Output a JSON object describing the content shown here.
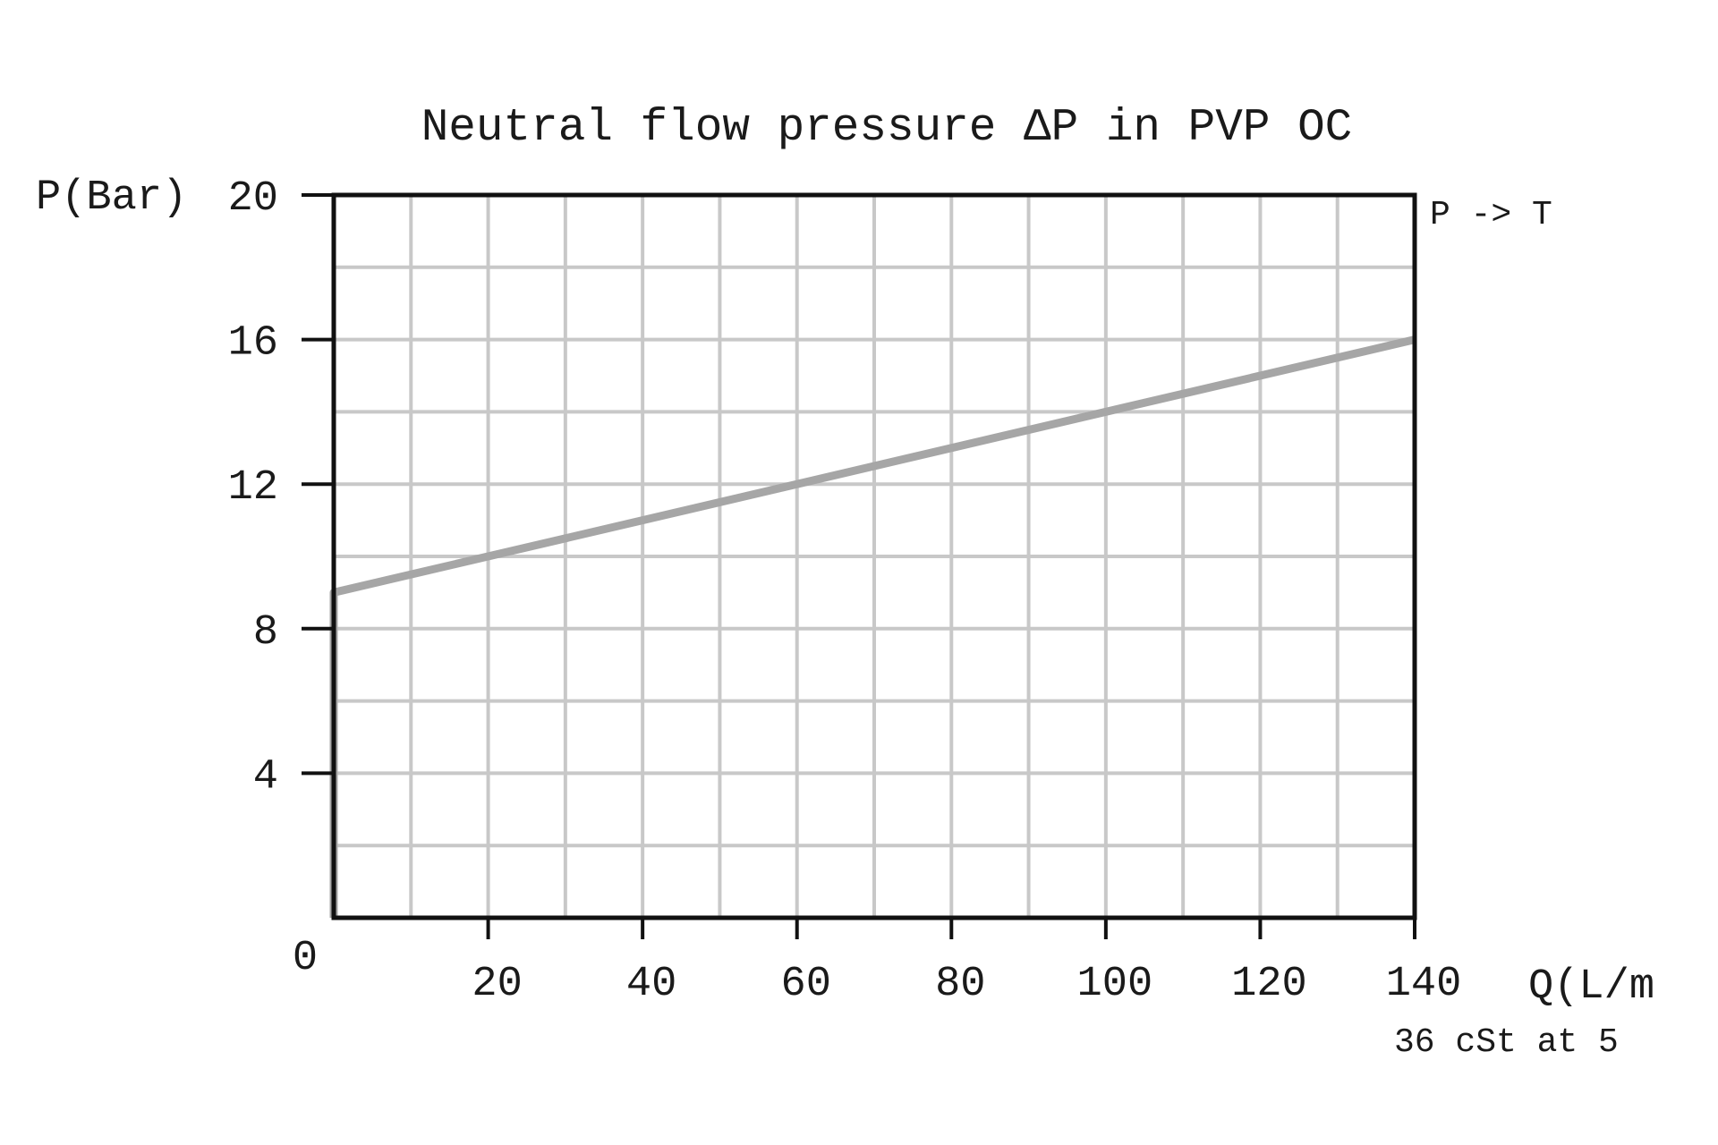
{
  "chart_data": {
    "type": "line",
    "title": "Neutral flow pressure ΔP in PVP OC",
    "xlabel": "Q(L/m",
    "ylabel": "P(Bar)",
    "annotation": "36 cSt at 5",
    "xlim": [
      0,
      140
    ],
    "ylim": [
      0,
      20
    ],
    "x_ticks": [
      20,
      40,
      60,
      80,
      100,
      120,
      140
    ],
    "y_ticks": [
      4,
      8,
      12,
      16,
      20
    ],
    "origin_label": "0",
    "grid": true,
    "grid_step_x": 10,
    "grid_step_y": 2,
    "legend_placement": "top-right",
    "series": [
      {
        "name": "P -> T",
        "color": "#a6a6a6",
        "points": [
          [
            0,
            0
          ],
          [
            0,
            9
          ],
          [
            140,
            16
          ]
        ]
      }
    ]
  },
  "colors": {
    "grid": "#c8c8c8",
    "axes": "#111111",
    "series": "#a6a6a6"
  }
}
